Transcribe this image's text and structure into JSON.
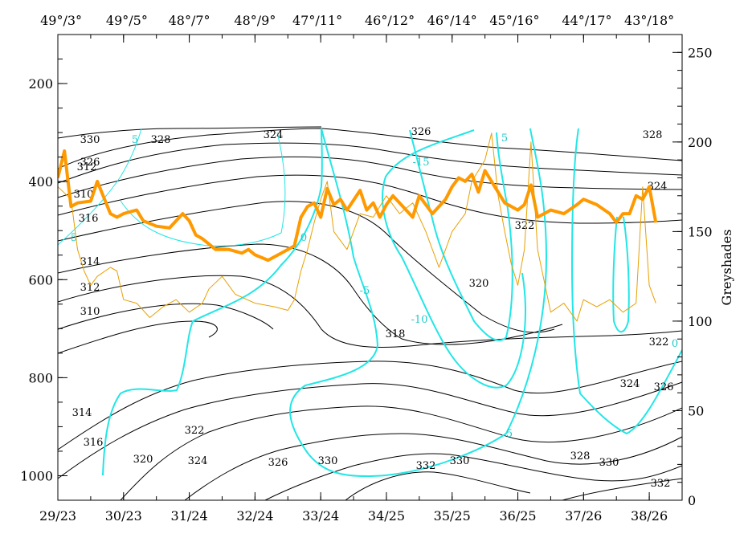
{
  "chart_data": {
    "type": "line",
    "title": "",
    "top_axis": {
      "tick_labels": [
        "49°/3°",
        "49°/5°",
        "48°/7°",
        "48°/9°",
        "47°/11°",
        "46°/12°",
        "46°/14°",
        "45°/16°",
        "44°/17°",
        "43°/18°"
      ],
      "positions": [
        29.05,
        30.05,
        31.0,
        32.0,
        32.95,
        34.05,
        35.0,
        35.95,
        37.05,
        38.0
      ]
    },
    "bottom_axis": {
      "tick_labels": [
        "29/23",
        "30/23",
        "31/24",
        "32/24",
        "33/24",
        "34/25",
        "35/25",
        "36/25",
        "37/26",
        "38/26"
      ],
      "positions": [
        29,
        30,
        31,
        32,
        33,
        34,
        35,
        36,
        37,
        38
      ],
      "range": [
        29,
        38.5
      ]
    },
    "left_axis": {
      "ylabel": "",
      "tick_labels": [
        "200",
        "400",
        "600",
        "800",
        "1000"
      ],
      "values": [
        200,
        400,
        600,
        800,
        1000
      ],
      "range": [
        1050,
        100
      ]
    },
    "right_axis": {
      "ylabel": "Greyshades",
      "tick_labels": [
        "0",
        "50",
        "100",
        "150",
        "200",
        "250"
      ],
      "values": [
        0,
        50,
        100,
        150,
        200,
        250
      ],
      "range": [
        0,
        260
      ]
    },
    "series": [
      {
        "color": "#ff9900",
        "axis": "right",
        "style": "thick",
        "x": [
          29.0,
          29.1,
          29.2,
          29.3,
          29.5,
          29.6,
          29.8,
          29.9,
          30.0,
          30.2,
          30.3,
          30.5,
          30.7,
          30.9,
          31.0,
          31.1,
          31.2,
          31.4,
          31.6,
          31.8,
          31.9,
          32.0,
          32.2,
          32.4,
          32.5,
          32.6,
          32.7,
          32.8,
          32.9,
          33.0,
          33.1,
          33.2,
          33.3,
          33.4,
          33.6,
          33.7,
          33.8,
          33.9,
          34.0,
          34.1,
          34.3,
          34.4,
          34.5,
          34.7,
          34.9,
          35.0,
          35.1,
          35.2,
          35.3,
          35.4,
          35.5,
          35.6,
          35.8,
          36.0,
          36.1,
          36.2,
          36.3,
          36.5,
          36.7,
          36.9,
          37.0,
          37.2,
          37.4,
          37.5,
          37.6,
          37.7,
          37.8,
          37.9,
          38.0,
          38.1
        ],
        "y": [
          180,
          195,
          164,
          166,
          167,
          178,
          160,
          158,
          160,
          162,
          156,
          153,
          152,
          160,
          156,
          148,
          146,
          140,
          140,
          138,
          140,
          137,
          134,
          138,
          140,
          142,
          158,
          164,
          166,
          158,
          174,
          165,
          168,
          162,
          173,
          162,
          166,
          158,
          165,
          170,
          162,
          158,
          170,
          160,
          168,
          175,
          180,
          178,
          182,
          172,
          184,
          178,
          166,
          162,
          165,
          176,
          158,
          162,
          160,
          165,
          168,
          165,
          160,
          155,
          160,
          160,
          170,
          168,
          175,
          155
        ]
      },
      {
        "color": "#e8a000",
        "axis": "right",
        "style": "thin",
        "x": [
          29.0,
          29.2,
          29.3,
          29.4,
          29.5,
          29.6,
          29.8,
          29.9,
          30.0,
          30.2,
          30.4,
          30.6,
          30.8,
          31.0,
          31.2,
          31.3,
          31.5,
          31.7,
          32.0,
          32.3,
          32.5,
          32.6,
          32.7,
          32.8,
          32.9,
          33.0,
          33.1,
          33.2,
          33.4,
          33.6,
          33.8,
          34.0,
          34.2,
          34.4,
          34.6,
          34.8,
          35.0,
          35.2,
          35.3,
          35.5,
          35.6,
          35.7,
          35.8,
          35.9,
          36.0,
          36.1,
          36.2,
          36.3,
          36.5,
          36.7,
          36.9,
          37.0,
          37.2,
          37.4,
          37.6,
          37.8,
          37.9,
          38.0,
          38.1
        ],
        "y": [
          175,
          168,
          140,
          128,
          120,
          125,
          130,
          128,
          112,
          110,
          102,
          108,
          112,
          105,
          110,
          118,
          125,
          115,
          110,
          108,
          106,
          112,
          128,
          140,
          155,
          168,
          178,
          150,
          140,
          160,
          158,
          170,
          160,
          166,
          150,
          130,
          150,
          160,
          178,
          190,
          205,
          170,
          150,
          132,
          120,
          140,
          200,
          140,
          105,
          110,
          100,
          112,
          108,
          112,
          105,
          110,
          175,
          120,
          110
        ]
      }
    ],
    "contours": {
      "black_levels": [
        "310",
        "312",
        "314",
        "316",
        "318",
        "320",
        "322",
        "324",
        "326",
        "328",
        "330",
        "332"
      ],
      "cyan_levels": [
        "5",
        "0",
        "-5",
        "-10",
        "-15"
      ]
    }
  }
}
